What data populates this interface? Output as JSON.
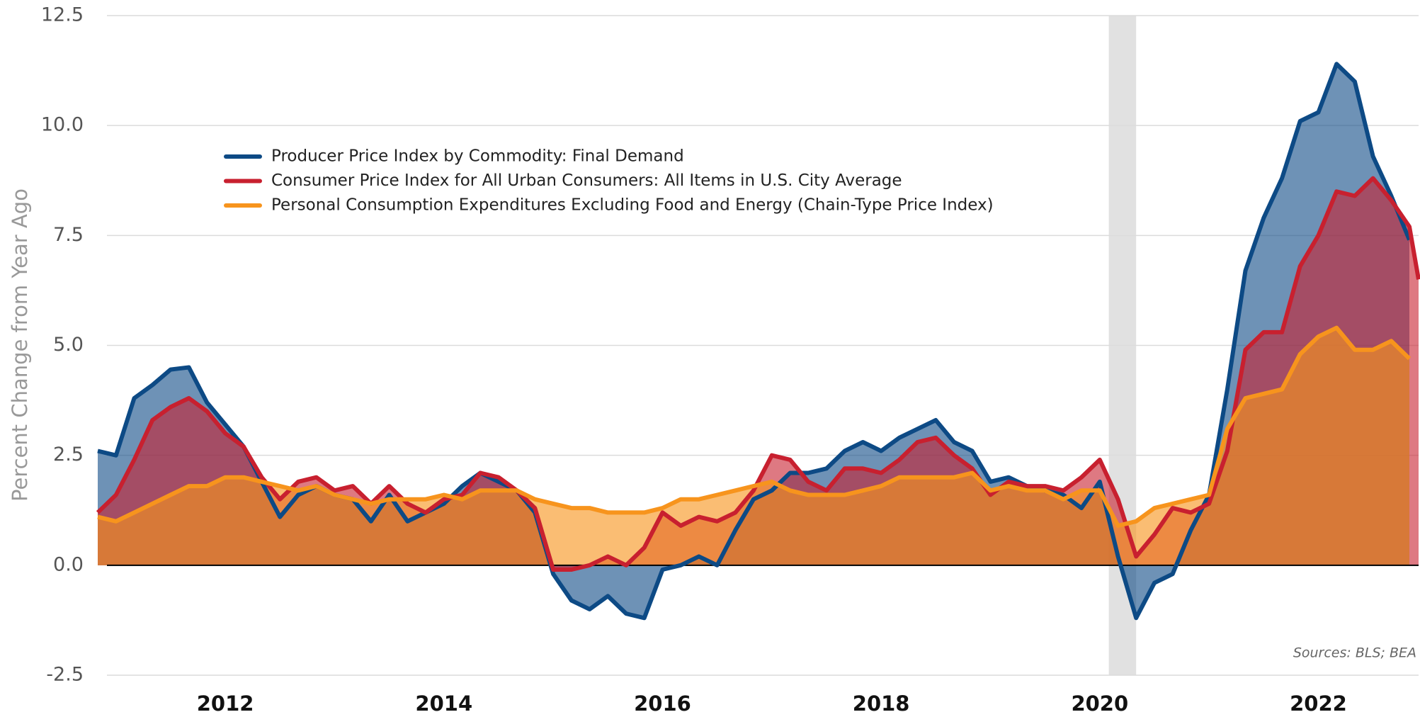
{
  "chart_data": {
    "type": "area",
    "y_label": "Percent Change from Year Ago",
    "annotation": "Sources: BLS; BEA",
    "legend": "upper left",
    "grid": true,
    "xlim": [
      2010.833,
      2022.917
    ],
    "xticks": [
      2012,
      2014,
      2016,
      2018,
      2020,
      2022
    ],
    "ylim": [
      -2.5,
      12.5
    ],
    "yticks": [
      -2.5,
      {
        "value": 0,
        "label": "0.0"
      },
      2.5,
      {
        "value": 5,
        "label": "5.0"
      },
      7.5,
      {
        "value": 10,
        "label": "10.0"
      },
      12.5
    ],
    "recessions": [
      {
        "start": 2020.083,
        "end": 2020.333,
        "color": "#e1e1e1"
      }
    ],
    "x": [
      2010.833,
      2011.0,
      2011.167,
      2011.333,
      2011.5,
      2011.667,
      2011.833,
      2012.0,
      2012.167,
      2012.333,
      2012.5,
      2012.667,
      2012.833,
      2013.0,
      2013.167,
      2013.333,
      2013.5,
      2013.667,
      2013.833,
      2014.0,
      2014.167,
      2014.333,
      2014.5,
      2014.667,
      2014.833,
      2015.0,
      2015.167,
      2015.333,
      2015.5,
      2015.667,
      2015.833,
      2016.0,
      2016.167,
      2016.333,
      2016.5,
      2016.667,
      2016.833,
      2017.0,
      2017.167,
      2017.333,
      2017.5,
      2017.667,
      2017.833,
      2018.0,
      2018.167,
      2018.333,
      2018.5,
      2018.667,
      2018.833,
      2019.0,
      2019.167,
      2019.333,
      2019.5,
      2019.667,
      2019.833,
      2020.0,
      2020.167,
      2020.333,
      2020.5,
      2020.667,
      2020.833,
      2021.0,
      2021.167,
      2021.333,
      2021.5,
      2021.667,
      2021.833,
      2022.0,
      2022.167,
      2022.333,
      2022.5,
      2022.667,
      2022.833,
      2022.917
    ],
    "series": [
      {
        "name": "Producer Price Index by Commodity: Final Demand",
        "color": "#0d4a85",
        "values": [
          2.6,
          2.5,
          3.8,
          4.1,
          4.45,
          4.5,
          3.7,
          3.2,
          2.7,
          1.9,
          1.1,
          1.6,
          1.8,
          1.6,
          1.5,
          1.0,
          1.6,
          1.0,
          1.2,
          1.4,
          1.8,
          2.1,
          1.9,
          1.7,
          1.2,
          -0.2,
          -0.8,
          -1.0,
          -0.7,
          -1.1,
          -1.2,
          -0.1,
          0.0,
          0.2,
          0.0,
          0.8,
          1.5,
          1.7,
          2.1,
          2.1,
          2.2,
          2.6,
          2.8,
          2.6,
          2.9,
          3.1,
          3.3,
          2.8,
          2.6,
          1.9,
          2.0,
          1.8,
          1.7,
          1.6,
          1.3,
          1.9,
          0.2,
          -1.2,
          -0.4,
          -0.2,
          0.8,
          1.6,
          4.0,
          6.7,
          7.9,
          8.8,
          10.1,
          10.3,
          11.4,
          11.0,
          9.3,
          8.4,
          7.4,
          null
        ]
      },
      {
        "name": "Consumer Price Index for All Urban Consumers: All Items in U.S. City Average",
        "color": "#c8202f",
        "values": [
          1.2,
          1.6,
          2.4,
          3.3,
          3.6,
          3.8,
          3.5,
          3.0,
          2.7,
          2.0,
          1.5,
          1.9,
          2.0,
          1.7,
          1.8,
          1.4,
          1.8,
          1.4,
          1.2,
          1.5,
          1.6,
          2.1,
          2.0,
          1.7,
          1.3,
          -0.1,
          -0.1,
          0.0,
          0.2,
          0.0,
          0.4,
          1.2,
          0.9,
          1.1,
          1.0,
          1.2,
          1.7,
          2.5,
          2.4,
          1.9,
          1.7,
          2.2,
          2.2,
          2.1,
          2.4,
          2.8,
          2.9,
          2.5,
          2.2,
          1.6,
          1.9,
          1.8,
          1.8,
          1.7,
          2.0,
          2.4,
          1.5,
          0.2,
          0.7,
          1.3,
          1.2,
          1.4,
          2.6,
          4.9,
          5.3,
          5.3,
          6.8,
          7.5,
          8.5,
          8.4,
          8.8,
          8.3,
          7.7,
          6.5
        ]
      },
      {
        "name": "Personal Consumption Expenditures Excluding Food and Energy (Chain-Type Price Index)",
        "color": "#f7941d",
        "values": [
          1.1,
          1.0,
          1.2,
          1.4,
          1.6,
          1.8,
          1.8,
          2.0,
          2.0,
          1.9,
          1.8,
          1.7,
          1.8,
          1.6,
          1.5,
          1.4,
          1.5,
          1.5,
          1.5,
          1.6,
          1.5,
          1.7,
          1.7,
          1.7,
          1.5,
          1.4,
          1.3,
          1.3,
          1.2,
          1.2,
          1.2,
          1.3,
          1.5,
          1.5,
          1.6,
          1.7,
          1.8,
          1.9,
          1.7,
          1.6,
          1.6,
          1.6,
          1.7,
          1.8,
          2.0,
          2.0,
          2.0,
          2.0,
          2.1,
          1.7,
          1.8,
          1.7,
          1.7,
          1.5,
          1.7,
          1.7,
          0.9,
          1.0,
          1.3,
          1.4,
          1.5,
          1.6,
          3.1,
          3.8,
          3.9,
          4.0,
          4.8,
          5.2,
          5.4,
          4.9,
          4.9,
          5.1,
          4.7,
          null
        ]
      }
    ]
  }
}
